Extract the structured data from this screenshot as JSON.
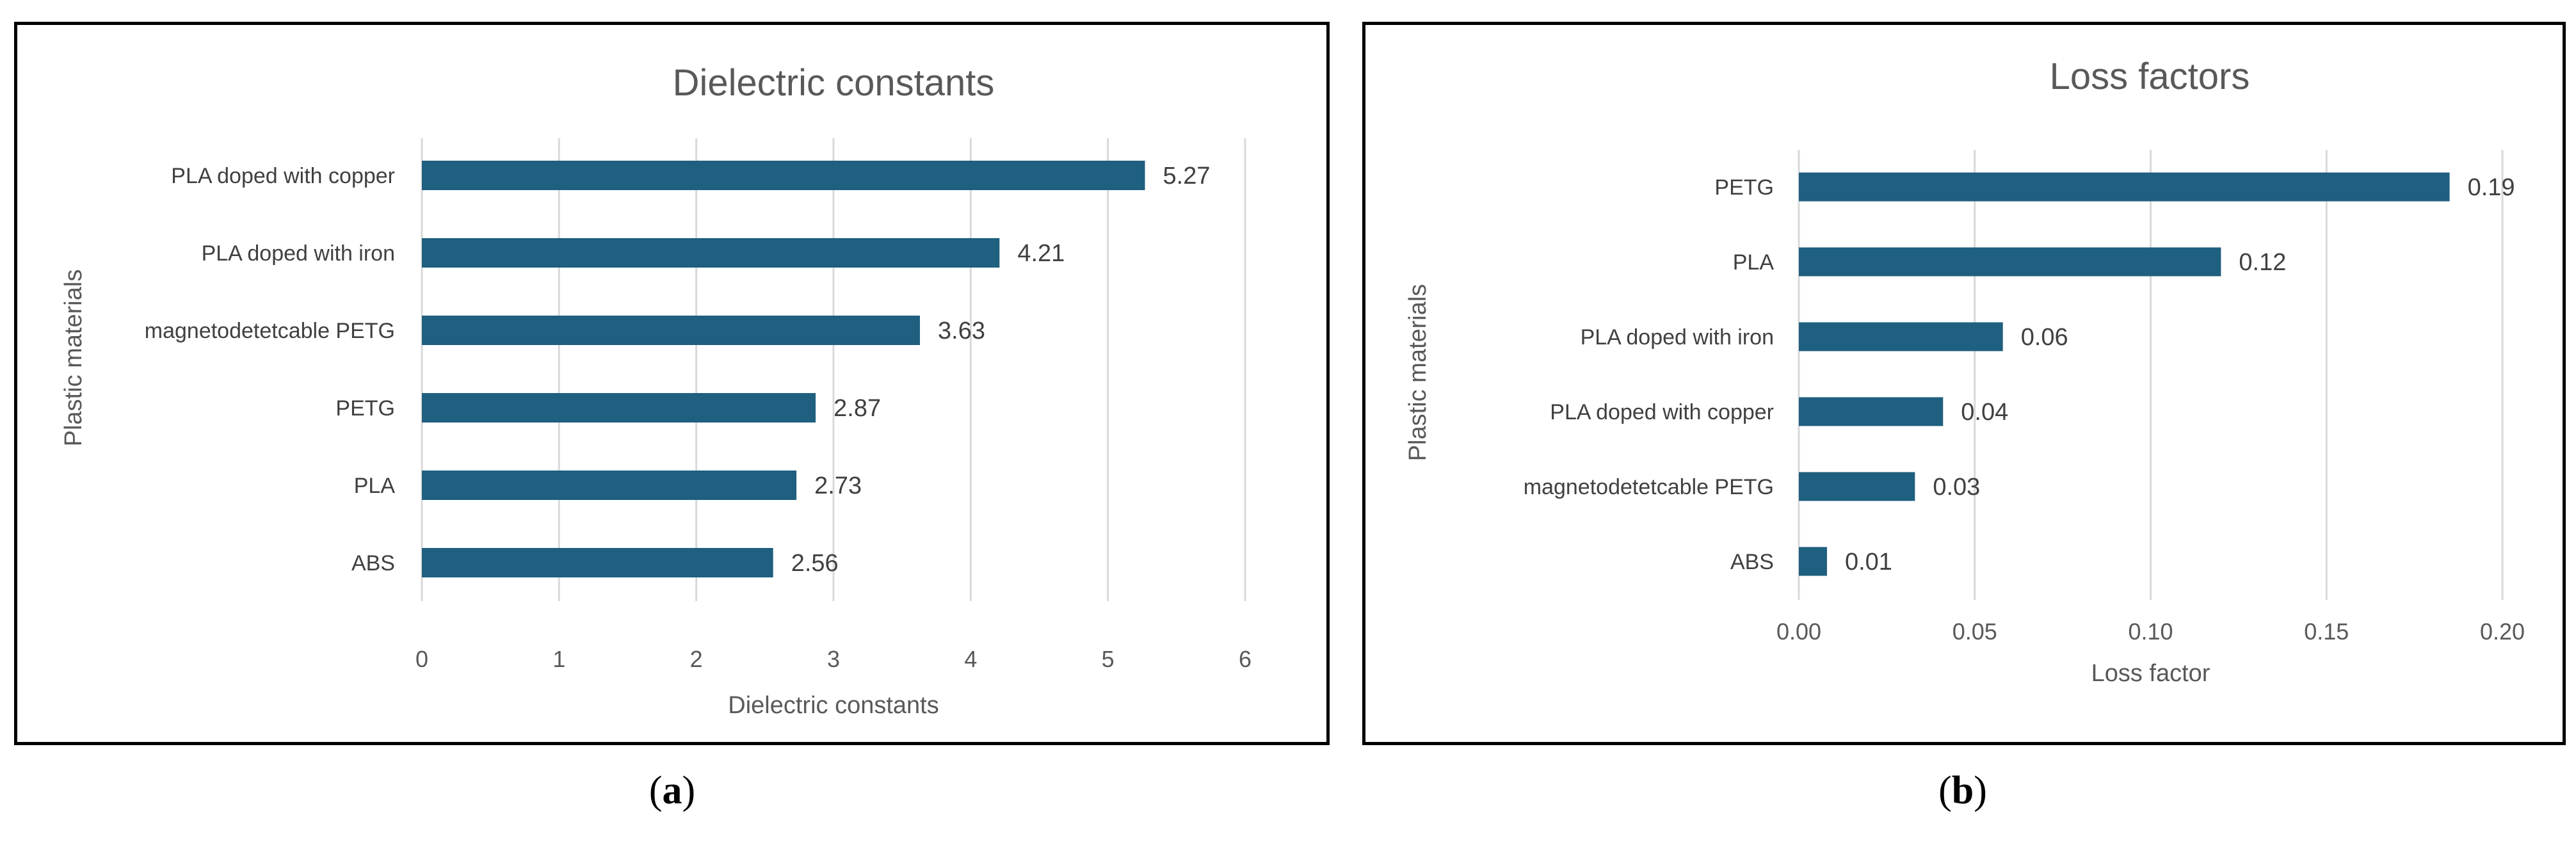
{
  "chart_data": [
    {
      "type": "bar",
      "orientation": "horizontal",
      "title": "Dielectric constants",
      "xlabel": "Dielectric constants",
      "ylabel": "Plastic materials",
      "categories": [
        "PLA doped with copper",
        "PLA doped with iron",
        "magnetodetetcable PETG",
        "PETG",
        "PLA",
        "ABS"
      ],
      "values": [
        5.27,
        4.21,
        3.63,
        2.87,
        2.73,
        2.56
      ],
      "value_labels": [
        "5.27",
        "4.21",
        "3.63",
        "2.87",
        "2.73",
        "2.56"
      ],
      "xlim": [
        0,
        6
      ],
      "ticks": [
        0,
        1,
        2,
        3,
        4,
        5,
        6
      ],
      "tick_labels": [
        "0",
        "1",
        "2",
        "3",
        "4",
        "5",
        "6"
      ],
      "grid": true,
      "bar_color": "#1f5f7f"
    },
    {
      "type": "bar",
      "orientation": "horizontal",
      "title": "Loss factors",
      "xlabel": "Loss factor",
      "ylabel": "Plastic materials",
      "categories": [
        "PETG",
        "PLA",
        "PLA doped with iron",
        "PLA doped with copper",
        "magnetodetetcable PETG",
        "ABS"
      ],
      "values": [
        0.185,
        0.12,
        0.058,
        0.041,
        0.033,
        0.008
      ],
      "value_labels": [
        "0.19",
        "0.12",
        "0.06",
        "0.04",
        "0.03",
        "0.01"
      ],
      "xlim": [
        0,
        0.2
      ],
      "ticks": [
        0,
        0.05,
        0.1,
        0.15,
        0.2
      ],
      "tick_labels": [
        "0.00",
        "0.05",
        "0.10",
        "0.15",
        "0.20"
      ],
      "grid": true,
      "bar_color": "#1f5f7f"
    }
  ],
  "captions": {
    "a": "a",
    "b": "b"
  }
}
